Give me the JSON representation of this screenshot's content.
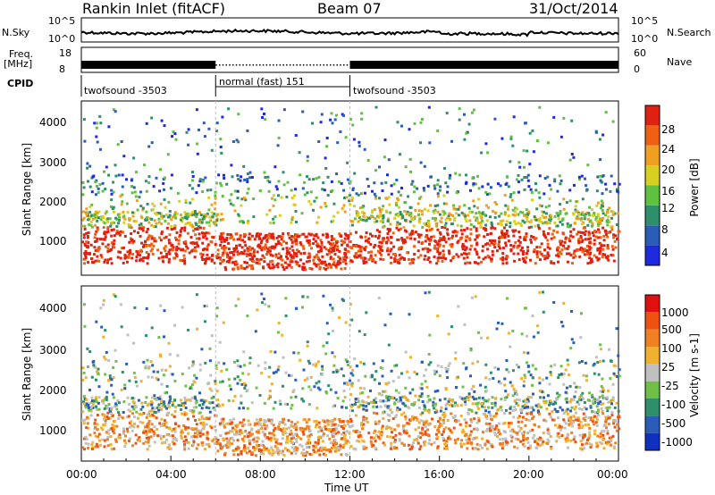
{
  "header": {
    "station": "Rankin Inlet (fitACF)",
    "beam": "Beam 07",
    "date": "31/Oct/2014"
  },
  "noise_panel": {
    "left_label": "N.Sky",
    "right_label": "N.Search",
    "ticks": [
      "10^5",
      "10^0"
    ]
  },
  "freq_panel": {
    "left_label_top": "Freq.",
    "left_label_bottom": "[MHz]",
    "left_ticks": [
      "18",
      "8"
    ],
    "right_label": "Nave",
    "right_ticks": [
      "60",
      "0"
    ]
  },
  "cpid": {
    "label": "CPID",
    "segments": [
      {
        "name": "twofsound -3503",
        "start_h": 0,
        "end_h": 6
      },
      {
        "name": "normal (fast) 151",
        "start_h": 6,
        "end_h": 12
      },
      {
        "name": "twofsound -3503",
        "start_h": 12,
        "end_h": 24
      }
    ]
  },
  "chart_data": [
    {
      "type": "heatmap",
      "name": "power",
      "ylabel": "Slant Range [km]",
      "yticks": [
        "1000",
        "2000",
        "3000",
        "4000"
      ],
      "ylim": [
        180,
        4500
      ],
      "colorbar_label": "Power [dB]",
      "colorbar_ticks": [
        "4",
        "8",
        "12",
        "16",
        "20",
        "24",
        "28"
      ],
      "colorbar_colors": [
        "#1e2adf",
        "#2a5cb8",
        "#2e8f6a",
        "#60c040",
        "#d8d020",
        "#f0a020",
        "#f06010",
        "#e02010"
      ]
    },
    {
      "type": "heatmap",
      "name": "velocity",
      "ylabel": "Slant Range [km]",
      "yticks": [
        "1000",
        "2000",
        "3000",
        "4000"
      ],
      "ylim": [
        180,
        4500
      ],
      "colorbar_label": "Velocity [m s-1]",
      "colorbar_ticks": [
        "1000",
        "500",
        "100",
        "25",
        "-25",
        "-100",
        "-500",
        "-1000"
      ],
      "colorbar_colors": [
        "#1030c0",
        "#2a5cb8",
        "#2e8f6a",
        "#70c048",
        "#c0c0c0",
        "#f0b030",
        "#f08020",
        "#f05010",
        "#e01010"
      ]
    }
  ],
  "time_axis": {
    "ticks": [
      "00:00",
      "04:00",
      "08:00",
      "12:00",
      "16:00",
      "20:00",
      "00:00"
    ],
    "label": "Time UT"
  }
}
